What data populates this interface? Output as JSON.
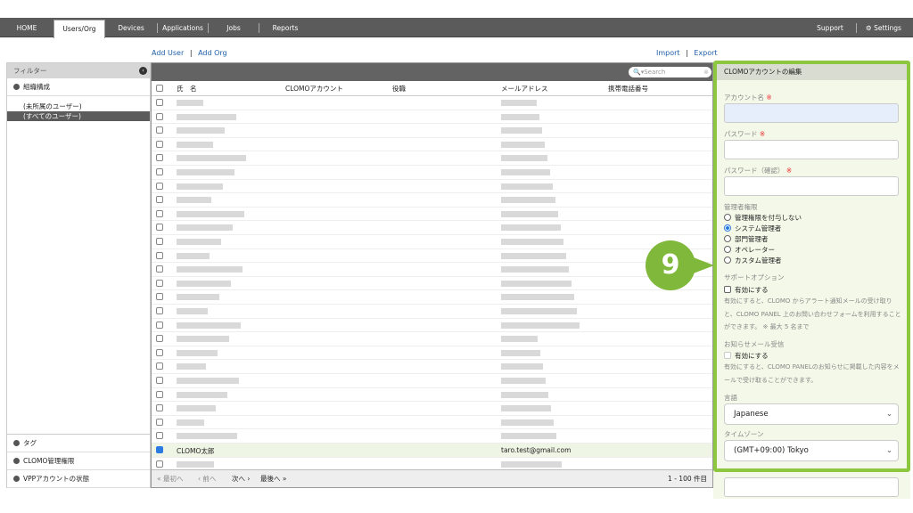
{
  "nav": {
    "tabs": [
      "HOME",
      "Users/Org",
      "Devices",
      "Applications",
      "Jobs",
      "Reports"
    ],
    "active": "Users/Org",
    "support": "Support",
    "settings": "Settings"
  },
  "actions": {
    "add_user": "Add User",
    "add_org": "Add Org",
    "import": "Import",
    "export": "Export"
  },
  "filter": {
    "title": "フィルター",
    "org_section": "組織構成",
    "org_items": [
      "(未所属のユーザー)",
      "(すべてのユーザー)"
    ],
    "selected_org": "(すべてのユーザー)",
    "bottom_sections": [
      "タグ",
      "CLOMO管理権限",
      "VPPアカウントの状態"
    ]
  },
  "table": {
    "search_placeholder": "Search",
    "columns": [
      "氏　名",
      "CLOMOアカウント",
      "役職",
      "メールアドレス",
      "携帯電話番号"
    ],
    "selected_row": {
      "name": "CLOMO太郎",
      "email": "taro.test@gmail.com",
      "checked": true
    },
    "pager": {
      "first": "« 最初へ",
      "prev": "‹ 前へ",
      "next": "次へ ›",
      "last": "最後へ »",
      "count": "1 - 100 件目"
    }
  },
  "editor": {
    "title": "CLOMOアカウントの編集",
    "account_label": "アカウント名",
    "password_label": "パスワード",
    "password_confirm_label": "パスワード（確認）",
    "required_mark": "※",
    "admin_label": "管理者権限",
    "admin_options": [
      "管理権限を付与しない",
      "システム管理者",
      "部門管理者",
      "オペレーター",
      "カスタム管理者"
    ],
    "admin_selected": "システム管理者",
    "support_label": "サポートオプション",
    "support_checkbox": "有効にする",
    "support_note": "有効にすると、CLOMO からアラート通知メールの受け取りと、CLOMO PANEL 上のお問い合わせフォームを利用することができます。 ※ 最大 5 名まで",
    "notice_label": "お知らせメール受信",
    "notice_checkbox": "有効にする",
    "notice_note": "有効にすると、CLOMO PANELのお知らせに掲載した内容をメールで受け取ることができます。",
    "language_label": "言語",
    "language_value": "Japanese",
    "timezone_label": "タイムゾーン",
    "timezone_value": "(GMT+09:00) Tokyo"
  },
  "callout": {
    "number": "9",
    "color": "#7fb83a"
  },
  "colors": {
    "accent": "#8dc63f",
    "nav": "#5b5b5b",
    "link": "#1f5fa8"
  }
}
